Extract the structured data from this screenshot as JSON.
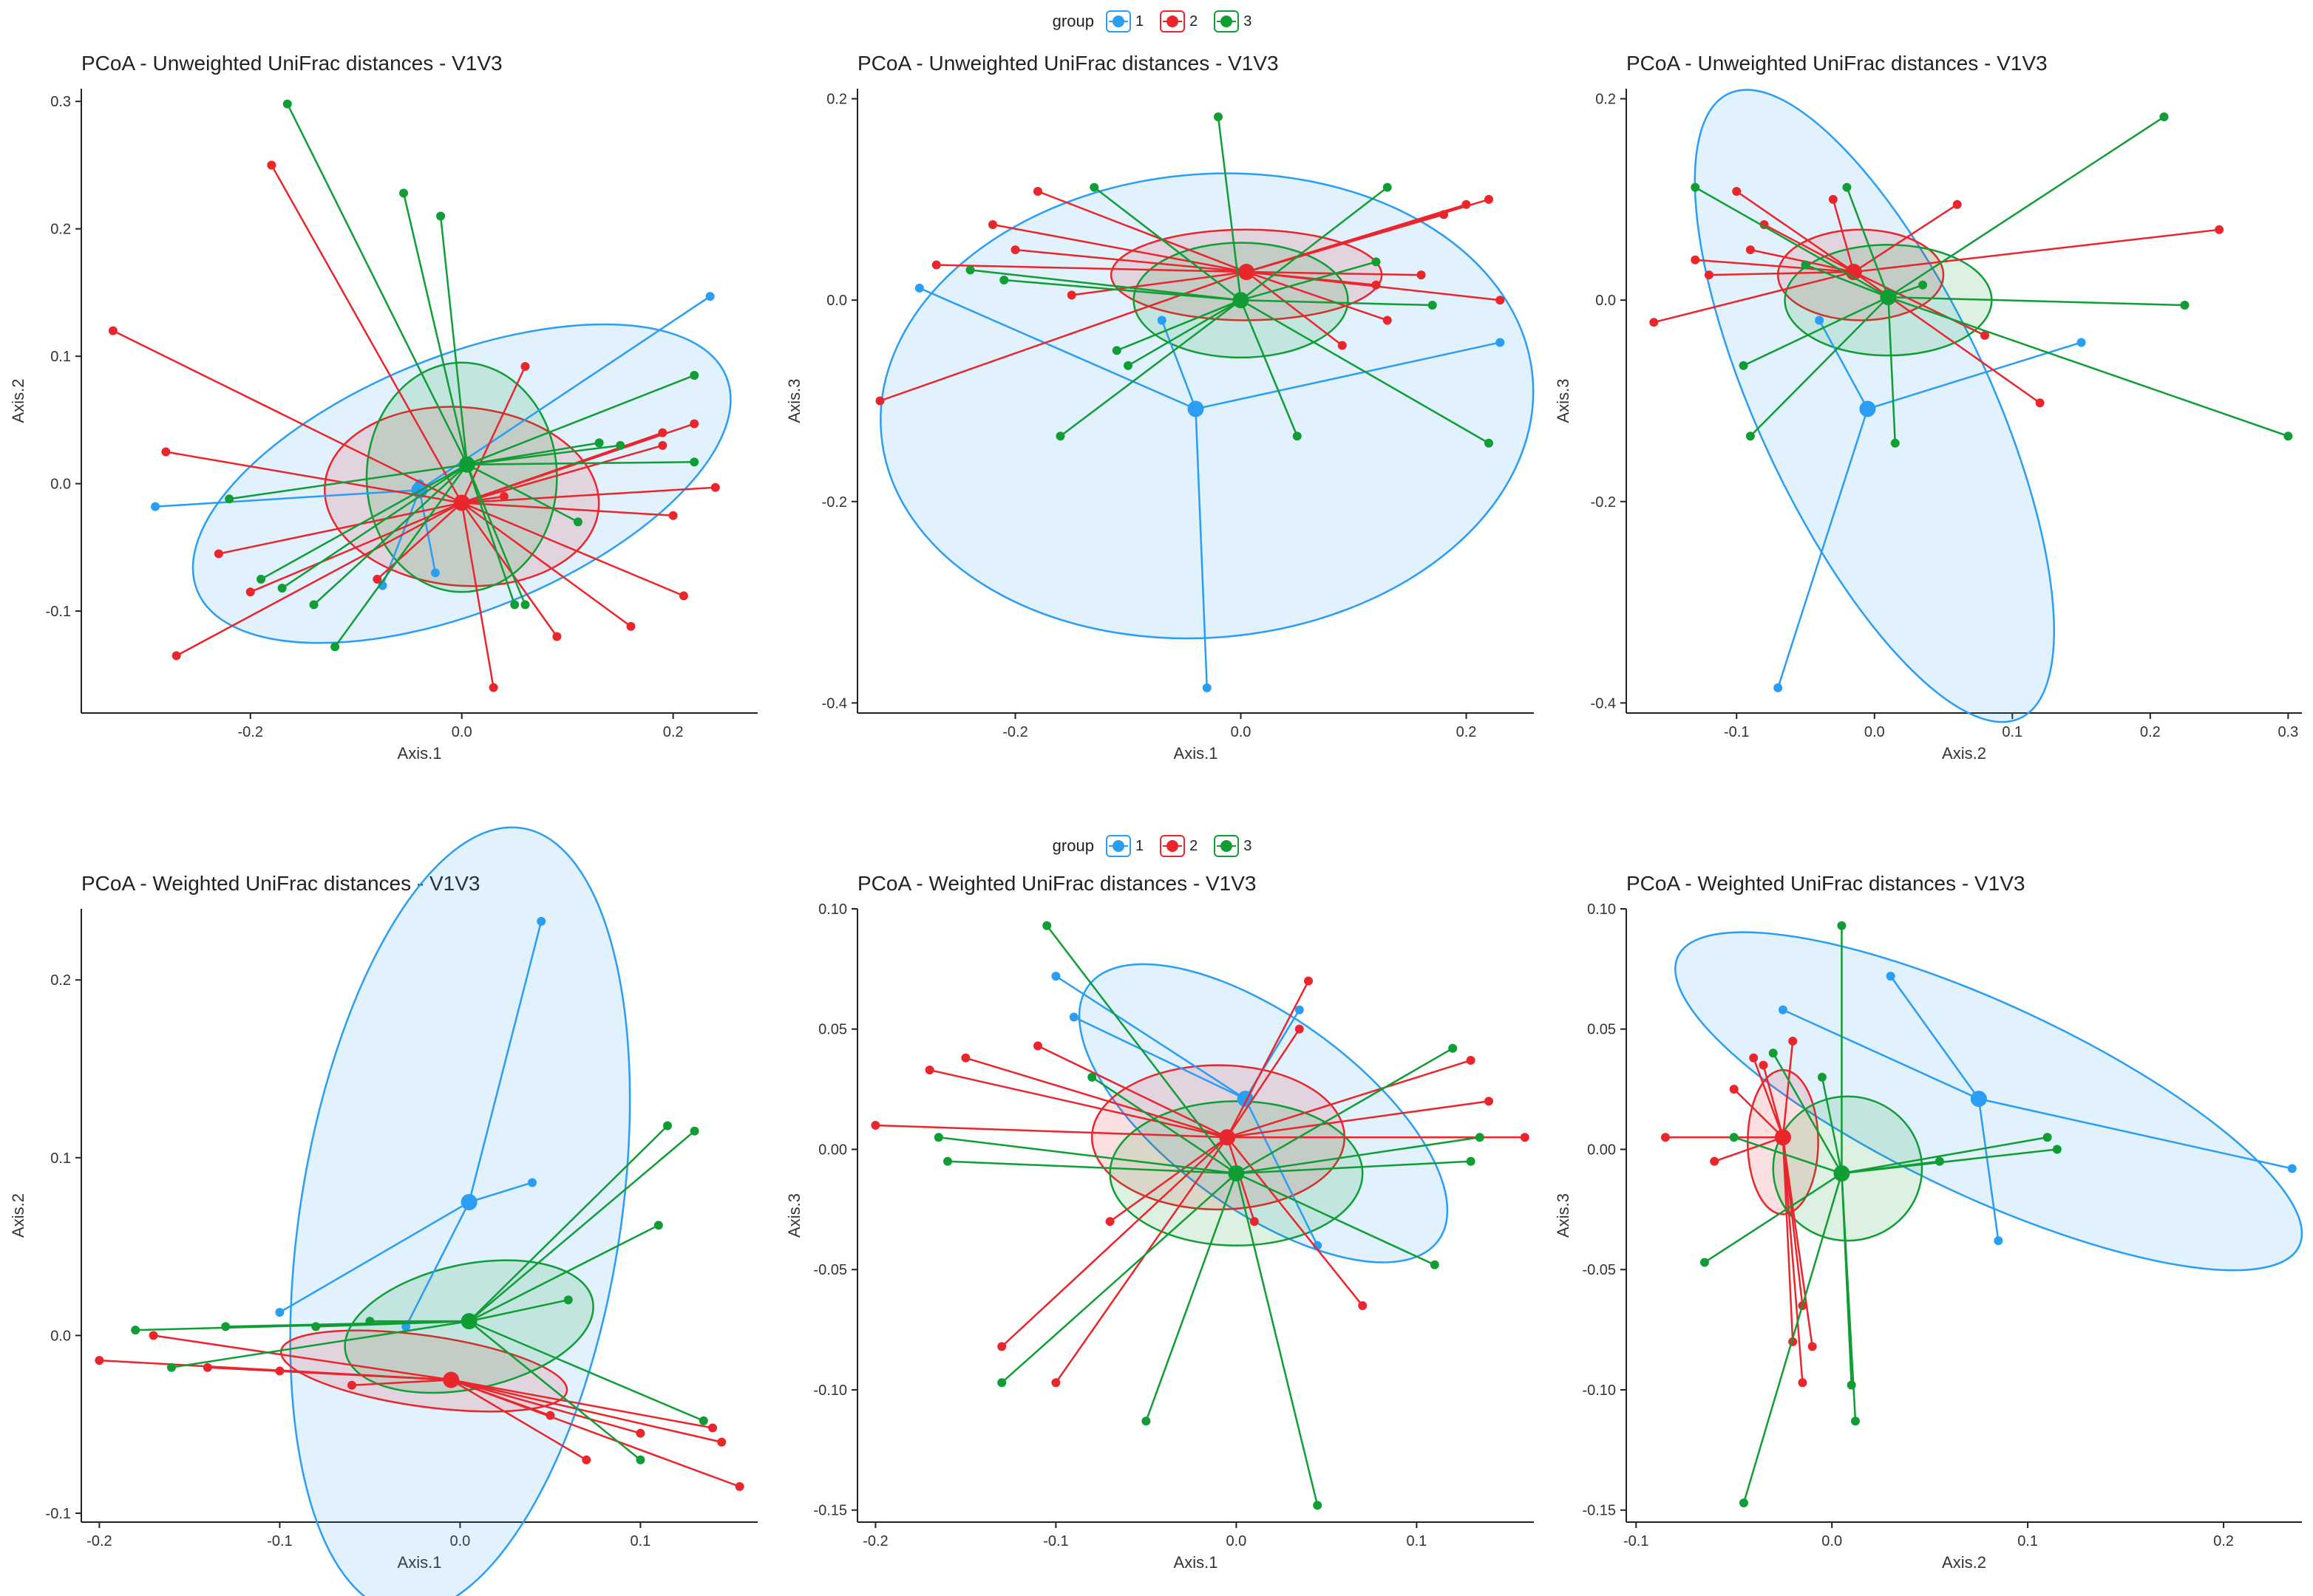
{
  "legend": {
    "title": "group",
    "items": [
      {
        "label": "1",
        "color": "#2a9df4"
      },
      {
        "label": "2",
        "color": "#e8262c"
      },
      {
        "label": "3",
        "color": "#0f9d34"
      }
    ]
  },
  "chart_data": [
    {
      "type": "scatter",
      "title": "PCoA - Unweighted UniFrac distances - V1V3",
      "xlabel": "Axis.1",
      "ylabel": "Axis.2",
      "xlim": [
        -0.36,
        0.28
      ],
      "ylim": [
        -0.18,
        0.31
      ],
      "xticks": [
        "-0.2",
        "0.0",
        "0.2"
      ],
      "xtick_values": [
        -0.2,
        0.0,
        0.2
      ],
      "yticks": [
        "-0.1",
        "0.0",
        "0.1",
        "0.2",
        "0.3"
      ],
      "ytick_values": [
        -0.1,
        0.0,
        0.1,
        0.2,
        0.3
      ],
      "series": [
        {
          "name": "1",
          "centroid": [
            -0.04,
            -0.005
          ],
          "ellipse": {
            "cx": 0.0,
            "cy": 0.0,
            "rx": 0.27,
            "ry": 0.1,
            "angle": 22
          },
          "x": [
            -0.29,
            0.235,
            -0.075,
            -0.025,
            -0.04
          ],
          "y": [
            -0.018,
            0.147,
            -0.08,
            -0.07,
            0.0
          ]
        },
        {
          "name": "2",
          "centroid": [
            0.0,
            -0.015
          ],
          "ellipse": {
            "cx": 0.0,
            "cy": -0.01,
            "rx": 0.13,
            "ry": 0.07,
            "angle": -5
          },
          "x": [
            -0.33,
            -0.18,
            -0.28,
            -0.23,
            -0.2,
            -0.27,
            0.06,
            0.03,
            0.22,
            0.24,
            0.19,
            0.21,
            0.16,
            0.09,
            0.2,
            0.04,
            -0.08,
            0.19
          ],
          "y": [
            0.12,
            0.25,
            0.025,
            -0.055,
            -0.085,
            -0.135,
            0.092,
            -0.16,
            0.047,
            -0.003,
            0.04,
            -0.088,
            -0.112,
            -0.12,
            -0.025,
            -0.01,
            -0.075,
            0.03
          ]
        },
        {
          "name": "3",
          "centroid": [
            0.005,
            0.015
          ],
          "ellipse": {
            "cx": 0.0,
            "cy": 0.005,
            "rx": 0.09,
            "ry": 0.09,
            "angle": 0
          },
          "x": [
            -0.165,
            -0.055,
            -0.02,
            -0.22,
            -0.19,
            -0.12,
            -0.17,
            -0.14,
            0.06,
            0.05,
            0.11,
            0.13,
            0.22,
            0.22,
            0.15
          ],
          "y": [
            0.298,
            0.228,
            0.21,
            -0.012,
            -0.075,
            -0.128,
            -0.082,
            -0.095,
            -0.095,
            -0.095,
            -0.03,
            0.032,
            0.017,
            0.085,
            0.03
          ]
        }
      ]
    },
    {
      "type": "scatter",
      "title": "PCoA - Unweighted UniFrac distances - V1V3",
      "xlabel": "Axis.1",
      "ylabel": "Axis.3",
      "xlim": [
        -0.34,
        0.26
      ],
      "ylim": [
        -0.41,
        0.21
      ],
      "xticks": [
        "-0.2",
        "0.0",
        "0.2"
      ],
      "xtick_values": [
        -0.2,
        0.0,
        0.2
      ],
      "yticks": [
        "-0.4",
        "-0.2",
        "0.0",
        "0.2"
      ],
      "ytick_values": [
        -0.4,
        -0.2,
        0.0,
        0.2
      ],
      "series": [
        {
          "name": "1",
          "centroid": [
            -0.04,
            -0.108
          ],
          "ellipse": {
            "cx": -0.03,
            "cy": -0.105,
            "rx": 0.29,
            "ry": 0.23,
            "angle": 5
          },
          "x": [
            -0.285,
            -0.03,
            0.23,
            -0.07
          ],
          "y": [
            0.012,
            -0.385,
            -0.042,
            -0.02
          ]
        },
        {
          "name": "2",
          "centroid": [
            0.005,
            0.028
          ],
          "ellipse": {
            "cx": 0.005,
            "cy": 0.025,
            "rx": 0.12,
            "ry": 0.045,
            "angle": 0
          },
          "x": [
            -0.32,
            -0.27,
            -0.18,
            -0.22,
            -0.2,
            -0.15,
            0.2,
            0.22,
            0.16,
            0.18,
            0.23,
            0.12,
            0.13,
            0.09
          ],
          "y": [
            -0.1,
            0.035,
            0.108,
            0.075,
            0.05,
            0.005,
            0.095,
            0.1,
            0.025,
            0.085,
            0.0,
            0.015,
            -0.02,
            -0.045
          ]
        },
        {
          "name": "3",
          "centroid": [
            0.0,
            0.0
          ],
          "ellipse": {
            "cx": 0.0,
            "cy": 0.0,
            "rx": 0.095,
            "ry": 0.057,
            "angle": 0
          },
          "x": [
            -0.02,
            -0.13,
            -0.16,
            -0.21,
            -0.24,
            -0.11,
            0.13,
            0.22,
            0.05,
            -0.1,
            0.12,
            0.17
          ],
          "y": [
            0.182,
            0.112,
            -0.135,
            0.02,
            0.03,
            -0.05,
            0.112,
            -0.142,
            -0.135,
            -0.065,
            0.038,
            -0.005
          ]
        }
      ]
    },
    {
      "type": "scatter",
      "title": "PCoA - Unweighted UniFrac distances - V1V3",
      "xlabel": "Axis.2",
      "ylabel": "Axis.3",
      "xlim": [
        -0.18,
        0.31
      ],
      "ylim": [
        -0.41,
        0.21
      ],
      "xticks": [
        "-0.1",
        "0.0",
        "0.1",
        "0.2",
        "0.3"
      ],
      "xtick_values": [
        -0.1,
        0.0,
        0.1,
        0.2,
        0.3
      ],
      "yticks": [
        "-0.4",
        "-0.2",
        "0.0",
        "0.2"
      ],
      "ytick_values": [
        -0.4,
        -0.2,
        0.0,
        0.2
      ],
      "series": [
        {
          "name": "1",
          "centroid": [
            -0.005,
            -0.108
          ],
          "ellipse": {
            "cx": 0.0,
            "cy": -0.105,
            "rx": 0.25,
            "ry": 0.115,
            "angle": -65
          },
          "x": [
            -0.07,
            0.15,
            -0.04
          ],
          "y": [
            -0.385,
            -0.042,
            -0.02
          ]
        },
        {
          "name": "2",
          "centroid": [
            -0.015,
            0.028
          ],
          "ellipse": {
            "cx": -0.01,
            "cy": 0.025,
            "rx": 0.06,
            "ry": 0.045,
            "angle": 0
          },
          "x": [
            -0.16,
            -0.13,
            -0.12,
            -0.1,
            -0.08,
            -0.09,
            0.25,
            0.12,
            0.08,
            0.06,
            -0.03
          ],
          "y": [
            -0.022,
            0.04,
            0.025,
            0.108,
            0.075,
            0.05,
            0.07,
            -0.102,
            -0.035,
            0.095,
            0.1
          ]
        },
        {
          "name": "3",
          "centroid": [
            0.01,
            0.003
          ],
          "ellipse": {
            "cx": 0.01,
            "cy": 0.0,
            "rx": 0.075,
            "ry": 0.055,
            "angle": 0
          },
          "x": [
            -0.13,
            -0.09,
            0.21,
            0.3,
            0.225,
            0.015,
            -0.095,
            -0.02,
            0.035,
            -0.05
          ],
          "y": [
            0.112,
            -0.135,
            0.182,
            -0.135,
            -0.005,
            -0.142,
            -0.065,
            0.112,
            0.015,
            0.035
          ]
        }
      ]
    },
    {
      "type": "scatter",
      "title": "PCoA - Weighted UniFrac distances - V1V3",
      "xlabel": "Axis.1",
      "ylabel": "Axis.2",
      "xlim": [
        -0.21,
        0.165
      ],
      "ylim": [
        -0.105,
        0.24
      ],
      "xticks": [
        "-0.2",
        "-0.1",
        "0.0",
        "0.1"
      ],
      "xtick_values": [
        -0.2,
        -0.1,
        0.0,
        0.1
      ],
      "yticks": [
        "-0.1",
        "0.0",
        "0.1",
        "0.2"
      ],
      "ytick_values": [
        -0.1,
        0.0,
        0.1,
        0.2
      ],
      "series": [
        {
          "name": "1",
          "centroid": [
            0.005,
            0.075
          ],
          "ellipse": {
            "cx": 0.0,
            "cy": 0.065,
            "rx": 0.22,
            "ry": 0.09,
            "angle": 81
          },
          "x": [
            -0.1,
            0.045,
            0.04,
            -0.03
          ],
          "y": [
            0.013,
            0.233,
            0.086,
            0.005
          ]
        },
        {
          "name": "2",
          "centroid": [
            -0.005,
            -0.025
          ],
          "ellipse": {
            "cx": -0.02,
            "cy": -0.02,
            "rx": 0.08,
            "ry": 0.02,
            "angle": -8
          },
          "x": [
            -0.2,
            -0.17,
            -0.14,
            -0.1,
            -0.06,
            0.1,
            0.14,
            0.145,
            0.155,
            0.07,
            0.05
          ],
          "y": [
            -0.014,
            0.0,
            -0.018,
            -0.02,
            -0.028,
            -0.055,
            -0.052,
            -0.06,
            -0.085,
            -0.07,
            -0.045
          ]
        },
        {
          "name": "3",
          "centroid": [
            0.005,
            0.008
          ],
          "ellipse": {
            "cx": 0.005,
            "cy": 0.005,
            "rx": 0.07,
            "ry": 0.035,
            "angle": 12
          },
          "x": [
            -0.18,
            -0.16,
            -0.13,
            -0.08,
            -0.05,
            0.115,
            0.13,
            0.11,
            0.06,
            0.135,
            0.1
          ],
          "y": [
            0.003,
            -0.018,
            0.005,
            0.005,
            0.008,
            0.118,
            0.115,
            0.062,
            0.02,
            -0.048,
            -0.07
          ]
        }
      ]
    },
    {
      "type": "scatter",
      "title": "PCoA - Weighted UniFrac distances - V1V3",
      "xlabel": "Axis.1",
      "ylabel": "Axis.3",
      "xlim": [
        -0.21,
        0.165
      ],
      "ylim": [
        -0.155,
        0.1
      ],
      "xticks": [
        "-0.2",
        "-0.1",
        "0.0",
        "0.1"
      ],
      "xtick_values": [
        -0.2,
        -0.1,
        0.0,
        0.1
      ],
      "yticks": [
        "-0.15",
        "-0.10",
        "-0.05",
        "0.00",
        "0.05",
        "0.10"
      ],
      "ytick_values": [
        -0.15,
        -0.1,
        -0.05,
        0.0,
        0.05,
        0.1
      ],
      "series": [
        {
          "name": "1",
          "centroid": [
            0.005,
            0.021
          ],
          "ellipse": {
            "cx": 0.015,
            "cy": 0.015,
            "rx": 0.12,
            "ry": 0.04,
            "angle": -36
          },
          "x": [
            -0.1,
            -0.09,
            0.035,
            0.045
          ],
          "y": [
            0.072,
            0.055,
            0.058,
            -0.04
          ]
        },
        {
          "name": "2",
          "centroid": [
            -0.005,
            0.005
          ],
          "ellipse": {
            "cx": -0.01,
            "cy": 0.005,
            "rx": 0.07,
            "ry": 0.03,
            "angle": 0
          },
          "x": [
            -0.2,
            -0.17,
            -0.15,
            -0.13,
            -0.11,
            -0.1,
            0.04,
            0.035,
            0.13,
            0.14,
            0.16,
            0.07,
            0.01,
            -0.07
          ],
          "y": [
            0.01,
            0.033,
            0.038,
            -0.082,
            0.043,
            -0.097,
            0.07,
            0.05,
            0.037,
            0.02,
            0.005,
            -0.065,
            -0.03,
            -0.03
          ]
        },
        {
          "name": "3",
          "centroid": [
            0.0,
            -0.01
          ],
          "ellipse": {
            "cx": 0.0,
            "cy": -0.01,
            "rx": 0.07,
            "ry": 0.03,
            "angle": 0
          },
          "x": [
            -0.105,
            -0.165,
            -0.16,
            -0.13,
            -0.05,
            0.045,
            0.11,
            0.12,
            0.135,
            0.13,
            -0.08
          ],
          "y": [
            0.093,
            0.005,
            -0.005,
            -0.097,
            -0.113,
            -0.148,
            -0.048,
            0.042,
            0.005,
            -0.005,
            0.03
          ]
        }
      ]
    },
    {
      "type": "scatter",
      "title": "PCoA - Weighted UniFrac distances - V1V3",
      "xlabel": "Axis.2",
      "ylabel": "Axis.3",
      "xlim": [
        -0.105,
        0.24
      ],
      "ylim": [
        -0.155,
        0.1
      ],
      "xticks": [
        "-0.1",
        "0.0",
        "0.1",
        "0.2"
      ],
      "xtick_values": [
        -0.1,
        0.0,
        0.1,
        0.2
      ],
      "yticks": [
        "-0.15",
        "-0.10",
        "-0.05",
        "0.00",
        "0.05",
        "0.10"
      ],
      "ytick_values": [
        -0.15,
        -0.1,
        -0.05,
        0.0,
        0.05,
        0.1
      ],
      "series": [
        {
          "name": "1",
          "centroid": [
            0.075,
            0.021
          ],
          "ellipse": {
            "cx": 0.08,
            "cy": 0.02,
            "rx": 0.175,
            "ry": 0.04,
            "angle": -25
          },
          "x": [
            -0.025,
            0.03,
            0.235,
            0.085
          ],
          "y": [
            0.058,
            0.072,
            -0.008,
            -0.038
          ]
        },
        {
          "name": "2",
          "centroid": [
            -0.025,
            0.005
          ],
          "ellipse": {
            "cx": -0.025,
            "cy": 0.003,
            "rx": 0.018,
            "ry": 0.03,
            "angle": 0
          },
          "x": [
            -0.085,
            -0.06,
            -0.05,
            -0.04,
            -0.035,
            -0.02,
            -0.015,
            -0.01,
            -0.015,
            -0.02
          ],
          "y": [
            0.005,
            -0.005,
            0.025,
            0.038,
            0.035,
            0.045,
            -0.065,
            -0.082,
            -0.097,
            -0.08
          ]
        },
        {
          "name": "3",
          "centroid": [
            0.005,
            -0.01
          ],
          "ellipse": {
            "cx": 0.008,
            "cy": -0.008,
            "rx": 0.038,
            "ry": 0.03,
            "angle": 0
          },
          "x": [
            -0.065,
            -0.045,
            -0.03,
            0.005,
            0.01,
            0.012,
            0.11,
            0.115,
            0.055,
            -0.05,
            -0.005
          ],
          "y": [
            -0.047,
            -0.147,
            0.04,
            0.093,
            -0.098,
            -0.113,
            0.005,
            0.0,
            -0.005,
            0.005,
            0.03
          ]
        }
      ]
    }
  ]
}
